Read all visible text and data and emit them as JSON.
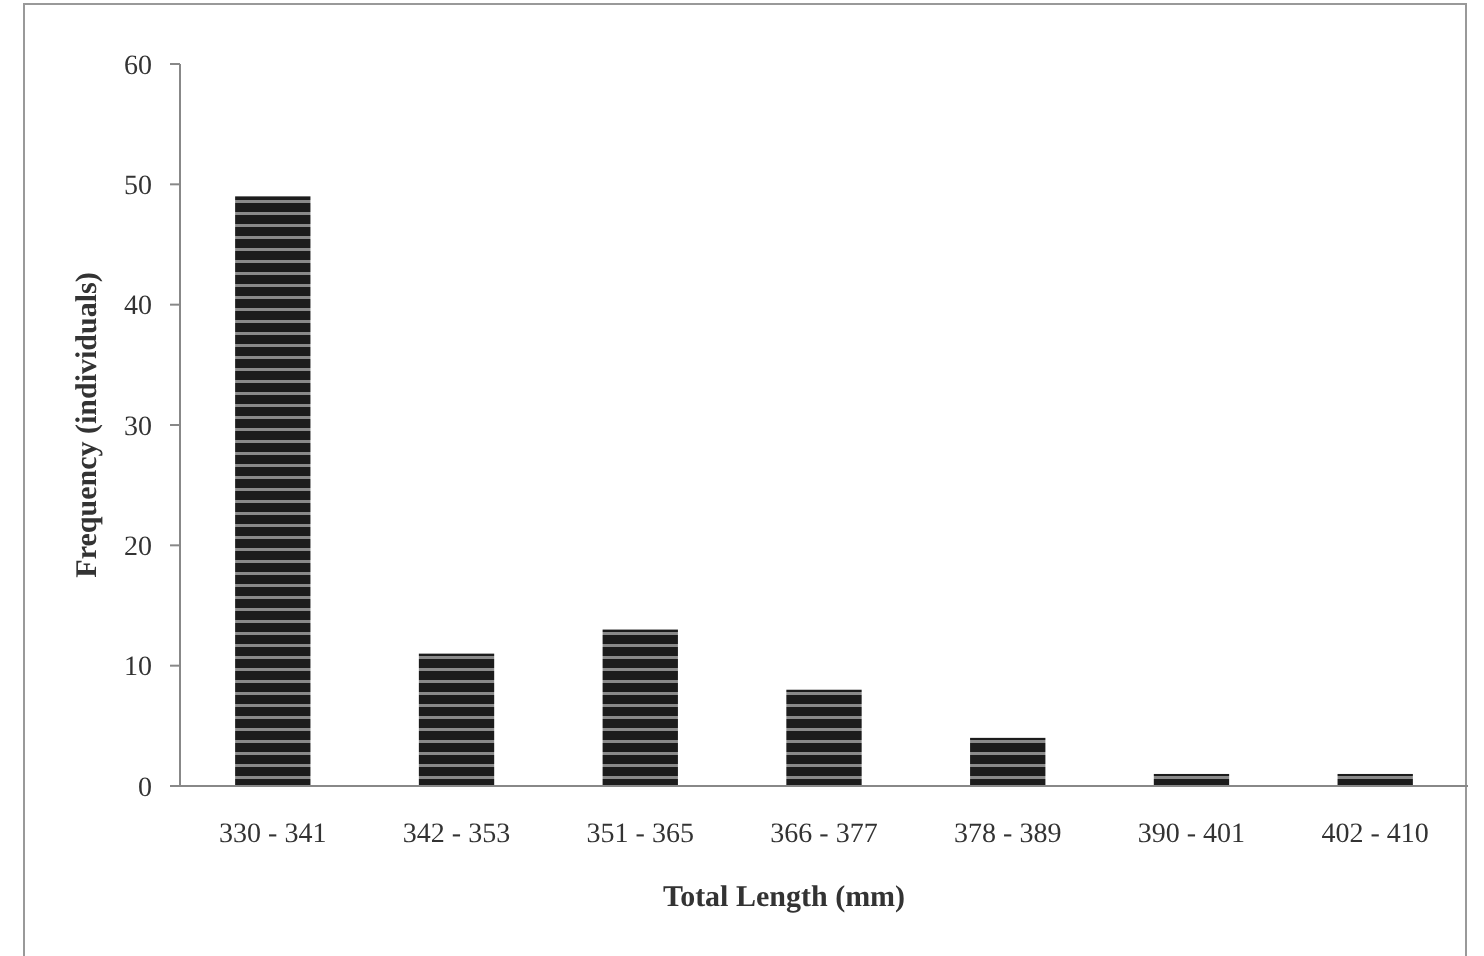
{
  "chart_data": {
    "type": "bar",
    "xlabel": "Total Length (mm)",
    "ylabel": "Frequency (individuals)",
    "categories": [
      "330 - 341",
      "342 - 353",
      "351 - 365",
      "366 - 377",
      "378 - 389",
      "390 - 401",
      "402 - 410"
    ],
    "values": [
      49,
      11,
      13,
      8,
      4,
      1,
      1
    ],
    "color": "#1c1c1c",
    "ylim": [
      0,
      60
    ],
    "yticks": [
      0,
      10,
      20,
      30,
      40,
      50,
      60
    ]
  }
}
